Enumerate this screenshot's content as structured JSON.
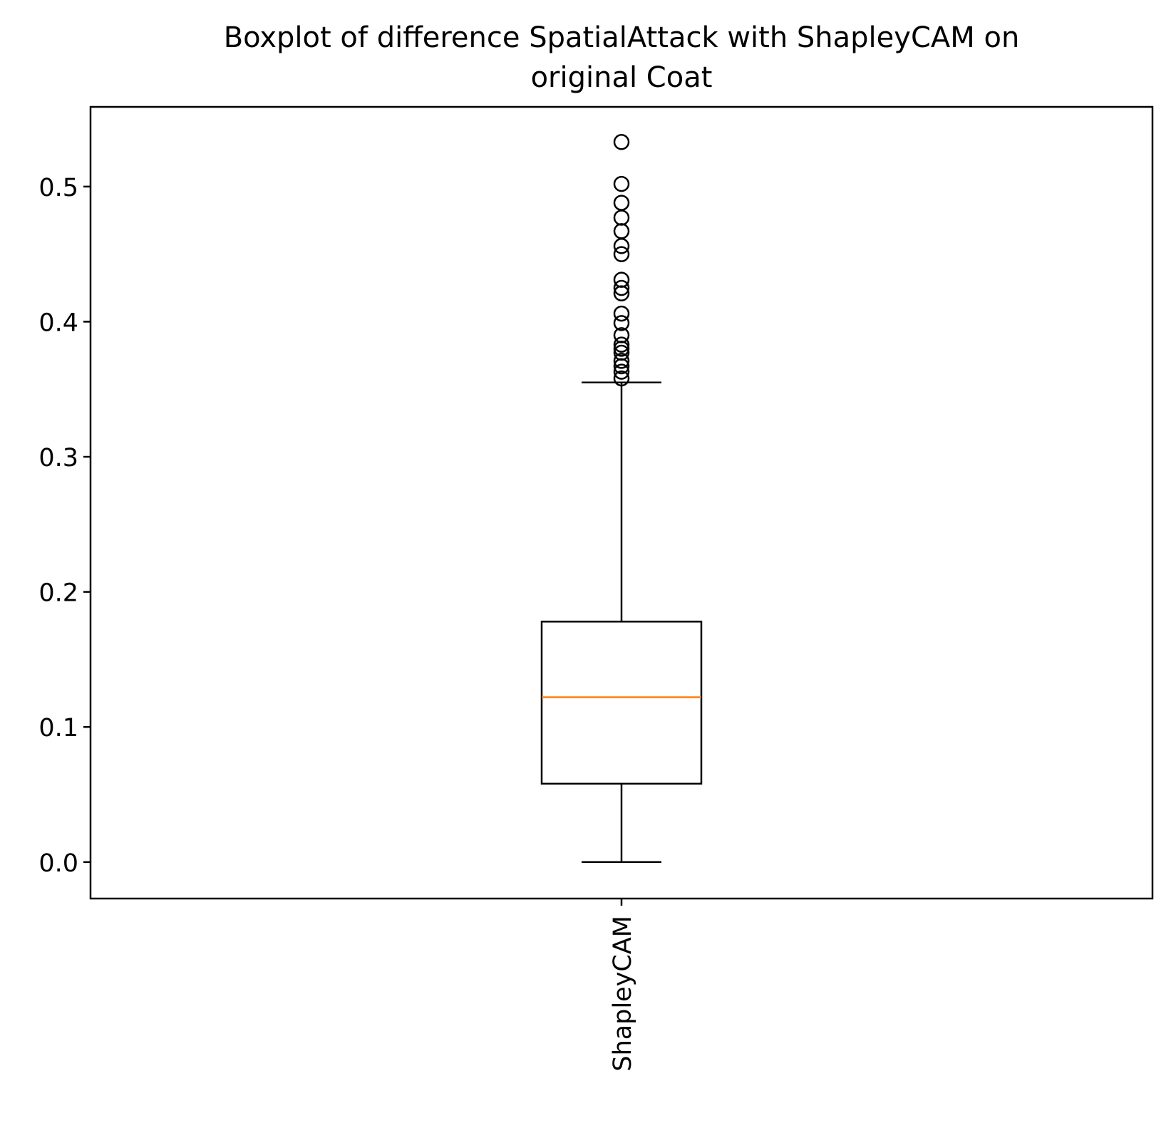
{
  "chart_data": {
    "type": "boxplot",
    "title_line1": "Boxplot of difference SpatialAttack with ShapleyCAM on",
    "title_line2": "original Coat",
    "categories": [
      "ShapleyCAM"
    ],
    "boxes": [
      {
        "category": "ShapleyCAM",
        "whisker_low": 0.0,
        "q1": 0.058,
        "median": 0.122,
        "q3": 0.178,
        "whisker_high": 0.355,
        "outliers": [
          0.533,
          0.502,
          0.488,
          0.477,
          0.467,
          0.456,
          0.45,
          0.431,
          0.425,
          0.421,
          0.406,
          0.399,
          0.39,
          0.383,
          0.38,
          0.377,
          0.371,
          0.367,
          0.363,
          0.358
        ]
      }
    ],
    "yticks": [
      0.0,
      0.1,
      0.2,
      0.3,
      0.4,
      0.5
    ],
    "ytick_labels": [
      "0.0",
      "0.1",
      "0.2",
      "0.3",
      "0.4",
      "0.5"
    ],
    "ylim": [
      -0.027,
      0.559
    ],
    "xlabel": "",
    "ylabel": "",
    "grid": false,
    "colors": {
      "box": "#000000",
      "median": "#ff7f0e",
      "outlier": "#000000"
    }
  }
}
